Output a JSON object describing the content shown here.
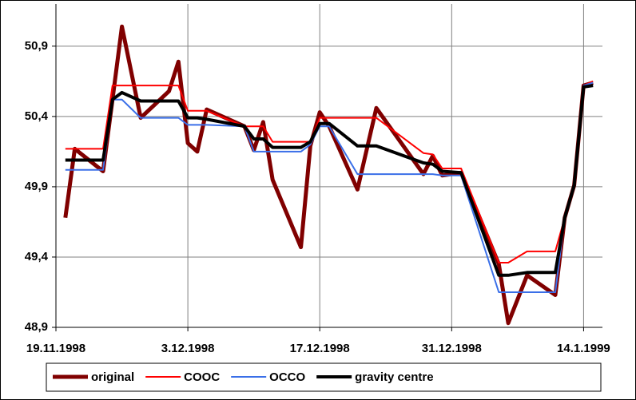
{
  "chart_data": {
    "type": "line",
    "x": [
      "20.11.1998",
      "21.11.1998",
      "24.11.1998",
      "25.11.1998",
      "26.11.1998",
      "28.11.1998",
      "1.12.1998",
      "2.12.1998",
      "3.12.1998",
      "4.12.1998",
      "5.12.1998",
      "9.12.1998",
      "10.12.1998",
      "11.12.1998",
      "12.12.1998",
      "15.12.1998",
      "16.12.1998",
      "17.12.1998",
      "18.12.1998",
      "21.12.1998",
      "23.12.1998",
      "28.12.1998",
      "29.12.1998",
      "30.12.1998",
      "1.1.1999",
      "5.1.1999",
      "6.1.1999",
      "8.1.1999",
      "11.1.1999",
      "12.1.1999",
      "13.1.1999",
      "14.1.1999",
      "15.1.1999"
    ],
    "series": [
      {
        "name": "original",
        "color": "#800000",
        "width": 5,
        "values": [
          49.68,
          50.17,
          50.01,
          50.52,
          51.04,
          50.39,
          50.58,
          50.79,
          50.21,
          50.15,
          50.45,
          50.33,
          50.16,
          50.36,
          49.95,
          49.47,
          50.19,
          50.43,
          50.33,
          49.88,
          50.46,
          49.99,
          50.12,
          49.98,
          50.0,
          49.35,
          48.93,
          49.27,
          49.13,
          49.68,
          49.91,
          50.62,
          50.64
        ]
      },
      {
        "name": "COOC",
        "color": "#ff0000",
        "width": 2,
        "values": [
          50.17,
          50.17,
          50.17,
          50.62,
          50.62,
          50.62,
          50.62,
          50.62,
          50.44,
          50.44,
          50.44,
          50.33,
          50.33,
          50.33,
          50.22,
          50.22,
          50.22,
          50.39,
          50.39,
          50.39,
          50.39,
          50.14,
          50.13,
          50.03,
          50.03,
          49.36,
          49.36,
          49.44,
          49.44,
          49.68,
          49.91,
          50.62,
          50.65
        ]
      },
      {
        "name": "OCCO",
        "color": "#3a6fe8",
        "width": 2,
        "values": [
          50.02,
          50.02,
          50.02,
          50.52,
          50.52,
          50.39,
          50.39,
          50.39,
          50.34,
          50.34,
          50.34,
          50.33,
          50.15,
          50.15,
          50.15,
          50.15,
          50.2,
          50.33,
          50.33,
          49.99,
          49.99,
          49.99,
          49.99,
          49.98,
          49.98,
          49.15,
          49.15,
          49.15,
          49.15,
          49.68,
          49.91,
          50.62,
          50.64
        ]
      },
      {
        "name": "gravity centre",
        "color": "#000000",
        "width": 4,
        "values": [
          50.09,
          50.09,
          50.09,
          50.52,
          50.57,
          50.51,
          50.51,
          50.51,
          50.39,
          50.39,
          50.38,
          50.33,
          50.24,
          50.24,
          50.18,
          50.18,
          50.22,
          50.35,
          50.35,
          50.19,
          50.19,
          50.07,
          50.06,
          50.01,
          50.0,
          49.27,
          49.27,
          49.29,
          49.29,
          49.68,
          49.91,
          50.61,
          50.62
        ]
      }
    ],
    "xlim": [
      "19.11.1998",
      "16.1.1999"
    ],
    "xticks": [
      "19.11.1998",
      "3.12.1998",
      "17.12.1998",
      "31.12.1998",
      "14.1.1999"
    ],
    "ylim": [
      48.9,
      51.2
    ],
    "yticks": [
      {
        "value": 48.9,
        "label": "48,9"
      },
      {
        "value": 49.4,
        "label": "49,4"
      },
      {
        "value": 49.9,
        "label": "49,9"
      },
      {
        "value": 50.4,
        "label": "50,4"
      },
      {
        "value": 50.9,
        "label": "50,9"
      }
    ],
    "grid": true,
    "legend": "bottom"
  }
}
